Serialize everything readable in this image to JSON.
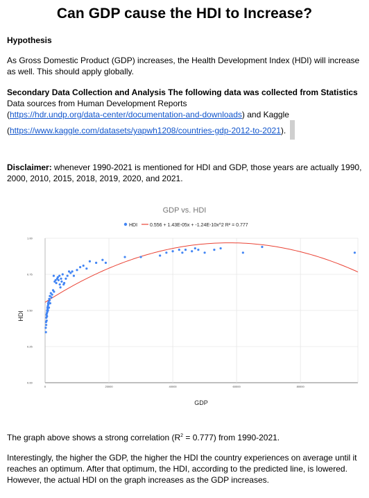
{
  "title": "Can GDP cause the HDI to Increase?",
  "hypothesis": {
    "heading": "Hypothesis",
    "text": "As Gross Domestic Product (GDP) increases, the Health Development Index (HDI) will increase as well. This should apply globally."
  },
  "secondary": {
    "heading": "Secondary Data Collection and Analysis The following data was collected from Statistics",
    "line1": "Data sources from Human Development Reports",
    "open_paren": "(",
    "link1": "https://hdr.undp.org/data-center/documentation-and-downloads",
    "and_kaggle": ") and Kaggle",
    "link2": "https://www.kaggle.com/datasets/yapwh1208/countries-gdp-2012-to-2021",
    "close": ")."
  },
  "disclaimer": {
    "label": "Disclaimer:",
    "text": " whenever 1990-2021 is mentioned for HDI and GDP, those years are actually 1990, 2000, 2010, 2015, 2018, 2019, 2020, and 2021."
  },
  "chart_data": {
    "type": "scatter",
    "title": "GDP vs. HDI",
    "xlabel": "GDP",
    "ylabel": "HDI",
    "xlim": [
      0,
      98000
    ],
    "ylim": [
      0,
      1
    ],
    "x_ticks": [
      0,
      20000,
      40000,
      60000,
      80000
    ],
    "y_ticks": [
      0.0,
      0.25,
      0.5,
      0.75,
      1.0
    ],
    "x_tick_labels": [
      "0",
      "20000",
      "40000",
      "60000",
      "80000"
    ],
    "y_tick_labels": [
      "0.00",
      "0.25",
      "0.50",
      "0.75",
      "1.00"
    ],
    "grid": true,
    "legend_position": "top",
    "colors": {
      "points": "#4285f4",
      "trendline": "#ea4335"
    },
    "series": [
      {
        "name": "HDI",
        "points": [
          [
            200,
            0.38
          ],
          [
            250,
            0.35
          ],
          [
            300,
            0.42
          ],
          [
            350,
            0.4
          ],
          [
            400,
            0.45
          ],
          [
            450,
            0.47
          ],
          [
            500,
            0.43
          ],
          [
            550,
            0.48
          ],
          [
            600,
            0.46
          ],
          [
            650,
            0.5
          ],
          [
            700,
            0.49
          ],
          [
            750,
            0.52
          ],
          [
            800,
            0.51
          ],
          [
            850,
            0.53
          ],
          [
            900,
            0.5
          ],
          [
            950,
            0.55
          ],
          [
            1000,
            0.54
          ],
          [
            1100,
            0.56
          ],
          [
            1200,
            0.52
          ],
          [
            1300,
            0.58
          ],
          [
            1400,
            0.57
          ],
          [
            1500,
            0.6
          ],
          [
            1600,
            0.55
          ],
          [
            1800,
            0.62
          ],
          [
            2000,
            0.59
          ],
          [
            2200,
            0.61
          ],
          [
            2500,
            0.64
          ],
          [
            2700,
            0.74
          ],
          [
            2800,
            0.63
          ],
          [
            3000,
            0.7
          ],
          [
            3300,
            0.71
          ],
          [
            3500,
            0.69
          ],
          [
            3800,
            0.72
          ],
          [
            4000,
            0.73
          ],
          [
            4200,
            0.71
          ],
          [
            4500,
            0.74
          ],
          [
            4600,
            0.68
          ],
          [
            4800,
            0.66
          ],
          [
            5000,
            0.72
          ],
          [
            5200,
            0.7
          ],
          [
            5500,
            0.75
          ],
          [
            5800,
            0.68
          ],
          [
            6000,
            0.69
          ],
          [
            6500,
            0.72
          ],
          [
            7000,
            0.74
          ],
          [
            7500,
            0.77
          ],
          [
            8000,
            0.76
          ],
          [
            8500,
            0.77
          ],
          [
            9000,
            0.74
          ],
          [
            10000,
            0.78
          ],
          [
            11000,
            0.8
          ],
          [
            12000,
            0.81
          ],
          [
            13000,
            0.79
          ],
          [
            14000,
            0.84
          ],
          [
            16000,
            0.83
          ],
          [
            18000,
            0.85
          ],
          [
            19000,
            0.83
          ],
          [
            25000,
            0.87
          ],
          [
            30000,
            0.87
          ],
          [
            36000,
            0.88
          ],
          [
            38000,
            0.9
          ],
          [
            40000,
            0.91
          ],
          [
            42000,
            0.92
          ],
          [
            43000,
            0.9
          ],
          [
            44000,
            0.92
          ],
          [
            46000,
            0.91
          ],
          [
            47000,
            0.93
          ],
          [
            48000,
            0.92
          ],
          [
            50000,
            0.9
          ],
          [
            53000,
            0.92
          ],
          [
            55000,
            0.93
          ],
          [
            62000,
            0.9
          ],
          [
            68000,
            0.94
          ],
          [
            97000,
            0.9
          ]
        ]
      }
    ],
    "trendline": {
      "label": "0.556 + 1.43E-05x + -1.24E-10x^2 R² = 0.777",
      "coefficients": [
        0.556,
        1.43e-05,
        -1.24e-10
      ]
    }
  },
  "conclusion": {
    "correlation_before": "The graph above shows a strong correlation (R",
    "correlation_sup": "2",
    "correlation_after": " = 0.777) from 1990-2021.",
    "interesting": "Interestingly, the higher the GDP, the higher the HDI the country experiences on average until it reaches an optimum. After that optimum, the HDI, according to the predicted line, is lowered. However, the actual HDI on the graph increases as the GDP increases."
  }
}
